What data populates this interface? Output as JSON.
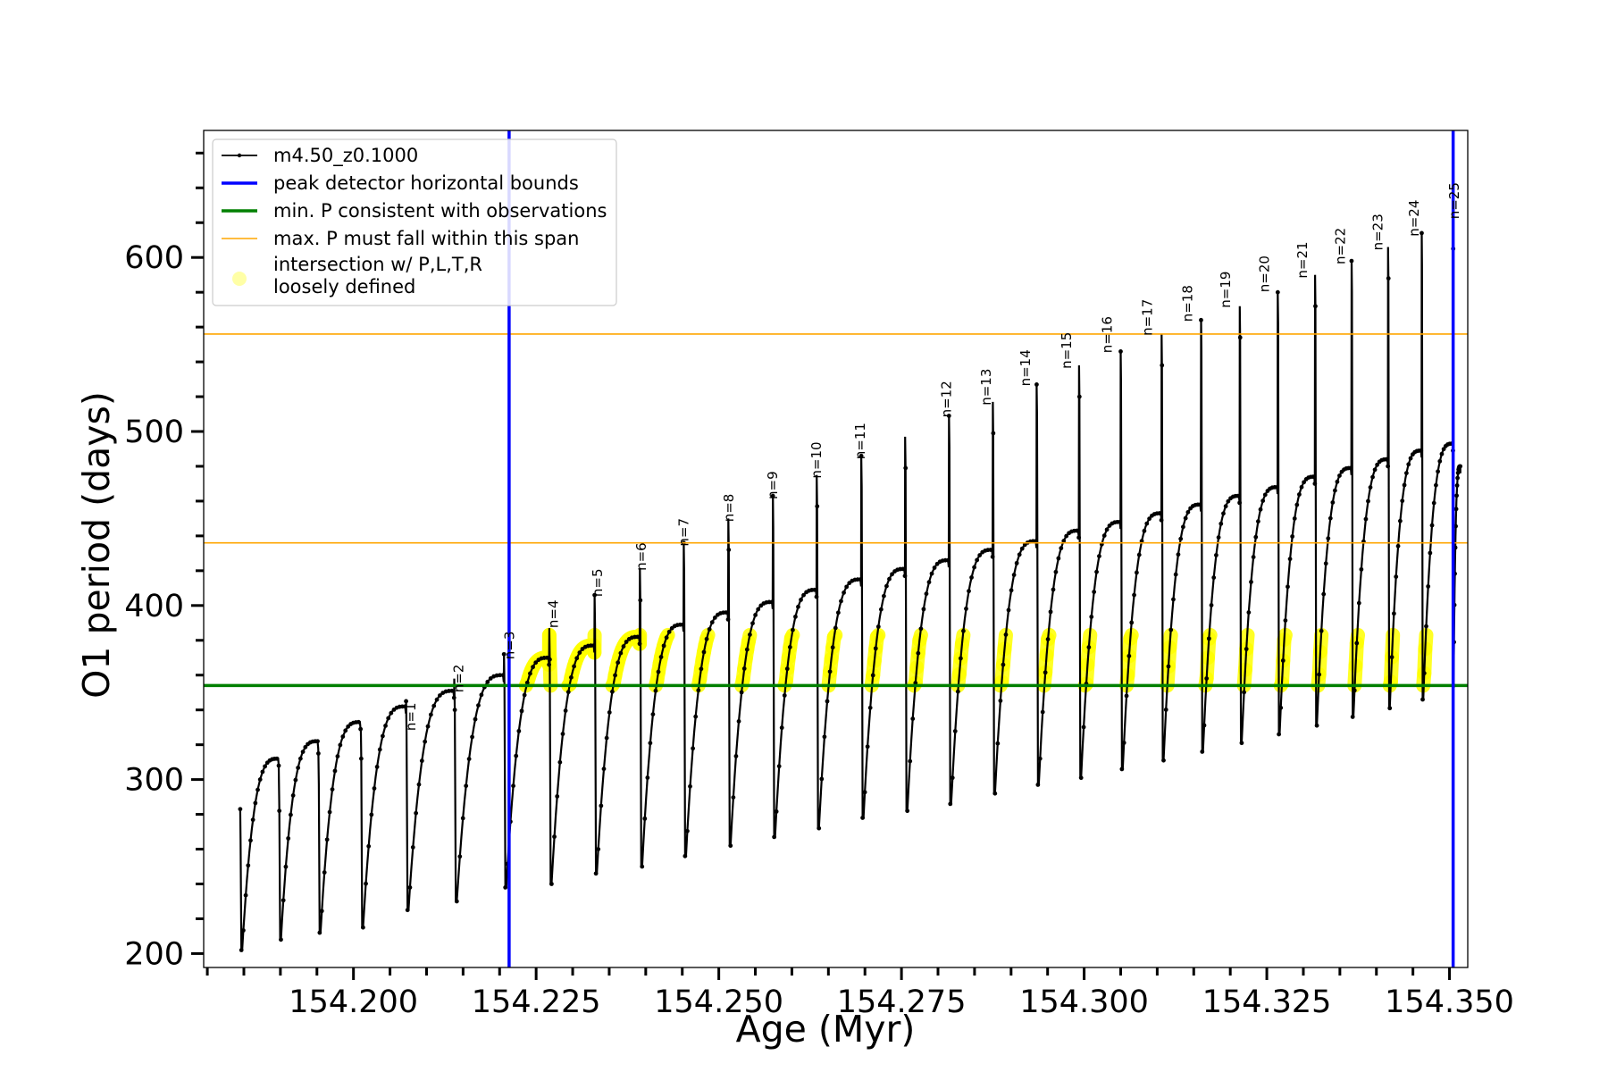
{
  "chart_data": {
    "type": "line",
    "xlabel": "Age (Myr)",
    "ylabel": "O1 period (days)",
    "xlim": [
      154.1795,
      154.3525
    ],
    "ylim": [
      192,
      673
    ],
    "x_ticks": [
      154.2,
      154.225,
      154.25,
      154.275,
      154.3,
      154.325,
      154.35
    ],
    "x_tick_labels": [
      "154.200",
      "154.225",
      "154.250",
      "154.275",
      "154.300",
      "154.325",
      "154.350"
    ],
    "y_ticks": [
      200,
      300,
      400,
      500,
      600
    ],
    "y_tick_labels": [
      "200",
      "300",
      "400",
      "500",
      "600"
    ],
    "grid": false,
    "legend_position": "top-left",
    "legend": [
      {
        "label": "m4.50_z0.1000",
        "color": "#000000",
        "style": "line-dot"
      },
      {
        "label": "peak detector horizontal bounds",
        "color": "#0000ff",
        "style": "thick-line"
      },
      {
        "label": "min. P consistent with observations",
        "color": "#008000",
        "style": "thick-line"
      },
      {
        "label": "max. P must fall within this span",
        "color": "#ffa500",
        "style": "thin-line"
      },
      {
        "label": "intersection w/ P,L,T,R\nloosely defined",
        "color": "#ffff00",
        "style": "marker"
      }
    ],
    "vertical_lines": [
      {
        "x": 154.2213,
        "color": "#0000ff"
      },
      {
        "x": 154.3505,
        "color": "#0000ff"
      }
    ],
    "horizontal_lines": [
      {
        "y": 354,
        "color": "#008000"
      },
      {
        "y": 436,
        "color": "#ffa500"
      },
      {
        "y": 556,
        "color": "#ffa500"
      }
    ],
    "series": [
      {
        "name": "m4.50_z0.1000",
        "color": "#000000",
        "x_start": 154.1845,
        "x_end": 154.3515,
        "pulses": [
          {
            "n": "",
            "x": 154.1845,
            "trough": 202,
            "plateau": 312,
            "spike": 283
          },
          {
            "n": "",
            "x": 154.1898,
            "trough": 208,
            "plateau": 322,
            "spike": 300
          },
          {
            "n": "",
            "x": 154.1952,
            "trough": 212,
            "plateau": 333,
            "spike": 315
          },
          {
            "n": "n=1",
            "x": 154.201,
            "trough": 215,
            "plateau": 342,
            "spike": 330
          },
          {
            "n": "n=2",
            "x": 154.2072,
            "trough": 225,
            "plateau": 351,
            "spike": 345
          },
          {
            "n": "n=3",
            "x": 154.2138,
            "trough": 230,
            "plateau": 360,
            "spike": 358
          },
          {
            "n": "n=4",
            "x": 154.2206,
            "trough": 238,
            "plateau": 370,
            "spike": 372
          },
          {
            "n": "n=5",
            "x": 154.2268,
            "trough": 240,
            "plateau": 377,
            "spike": 387
          },
          {
            "n": "n=6",
            "x": 154.233,
            "trough": 246,
            "plateau": 382,
            "spike": 406
          },
          {
            "n": "n=7",
            "x": 154.2392,
            "trough": 250,
            "plateau": 389,
            "spike": 421
          },
          {
            "n": "n=8",
            "x": 154.2452,
            "trough": 256,
            "plateau": 396,
            "spike": 436
          },
          {
            "n": "n=9",
            "x": 154.2513,
            "trough": 262,
            "plateau": 402,
            "spike": 450
          },
          {
            "n": "n=10",
            "x": 154.2574,
            "trough": 267,
            "plateau": 409,
            "spike": 463
          },
          {
            "n": "n=11",
            "x": 154.2634,
            "trough": 272,
            "plateau": 415,
            "spike": 475
          },
          {
            "n": "n=12",
            "x": 154.2695,
            "trough": 278,
            "plateau": 421,
            "spike": 486
          },
          {
            "n": "n=13",
            "x": 154.2755,
            "trough": 282,
            "plateau": 426,
            "spike": 497
          },
          {
            "n": "n=14",
            "x": 154.2815,
            "trough": 286,
            "plateau": 432,
            "spike": 509
          },
          {
            "n": "n=15",
            "x": 154.2875,
            "trough": 292,
            "plateau": 437,
            "spike": 517
          },
          {
            "n": "n=16",
            "x": 154.2935,
            "trough": 297,
            "plateau": 443,
            "spike": 527
          },
          {
            "n": "n=17",
            "x": 154.2993,
            "trough": 301,
            "plateau": 448,
            "spike": 538
          },
          {
            "n": "n=18",
            "x": 154.305,
            "trough": 306,
            "plateau": 453,
            "spike": 546
          },
          {
            "n": "n=19",
            "x": 154.3106,
            "trough": 311,
            "plateau": 458,
            "spike": 556
          },
          {
            "n": "n=20",
            "x": 154.316,
            "trough": 316,
            "plateau": 463,
            "spike": 564
          },
          {
            "n": "n=21",
            "x": 154.3213,
            "trough": 321,
            "plateau": 468,
            "spike": 572
          },
          {
            "n": "n=22",
            "x": 154.3265,
            "trough": 326,
            "plateau": 474,
            "spike": 580
          },
          {
            "n": "n=23",
            "x": 154.3316,
            "trough": 331,
            "plateau": 479,
            "spike": 590
          },
          {
            "n": "n=24",
            "x": 154.3366,
            "trough": 336,
            "plateau": 484,
            "spike": 598
          },
          {
            "n": "n=25",
            "x": 154.3416,
            "trough": 341,
            "plateau": 489,
            "spike": 606
          },
          {
            "n": "",
            "x": 154.3462,
            "trough": 346,
            "plateau": 493,
            "spike": 614
          },
          {
            "n": "",
            "x": 154.3505,
            "trough": 354,
            "plateau": 480,
            "spike": 623
          }
        ]
      }
    ],
    "peak_labels": [
      {
        "text": "n=1",
        "x": 154.2085,
        "y": 328
      },
      {
        "text": "n=2",
        "x": 154.215,
        "y": 350
      },
      {
        "text": "n=3",
        "x": 154.222,
        "y": 369
      },
      {
        "text": "n=4",
        "x": 154.228,
        "y": 387
      },
      {
        "text": "n=5",
        "x": 154.234,
        "y": 405
      },
      {
        "text": "n=6",
        "x": 154.24,
        "y": 420
      },
      {
        "text": "n=7",
        "x": 154.2458,
        "y": 434
      },
      {
        "text": "n=8",
        "x": 154.252,
        "y": 448
      },
      {
        "text": "n=9",
        "x": 154.258,
        "y": 461
      },
      {
        "text": "n=10",
        "x": 154.264,
        "y": 473
      },
      {
        "text": "n=11",
        "x": 154.27,
        "y": 484
      },
      {
        "text": "n=12",
        "x": 154.2818,
        "y": 508
      },
      {
        "text": "n=13",
        "x": 154.2872,
        "y": 515
      },
      {
        "text": "n=14",
        "x": 154.2926,
        "y": 526
      },
      {
        "text": "n=15",
        "x": 154.2982,
        "y": 536
      },
      {
        "text": "n=16",
        "x": 154.3038,
        "y": 545
      },
      {
        "text": "n=17",
        "x": 154.3093,
        "y": 555
      },
      {
        "text": "n=18",
        "x": 154.3148,
        "y": 563
      },
      {
        "text": "n=19",
        "x": 154.32,
        "y": 571
      },
      {
        "text": "n=20",
        "x": 154.3253,
        "y": 580
      },
      {
        "text": "n=21",
        "x": 154.3305,
        "y": 588
      },
      {
        "text": "n=22",
        "x": 154.3357,
        "y": 596
      },
      {
        "text": "n=23",
        "x": 154.3408,
        "y": 604
      },
      {
        "text": "n=24",
        "x": 154.3458,
        "y": 612
      },
      {
        "text": "n=25",
        "x": 154.3513,
        "y": 622
      }
    ],
    "intersection_region": {
      "color": "#ffff00",
      "y_range": [
        354,
        383
      ],
      "x_range": [
        154.2213,
        154.3505
      ]
    }
  }
}
